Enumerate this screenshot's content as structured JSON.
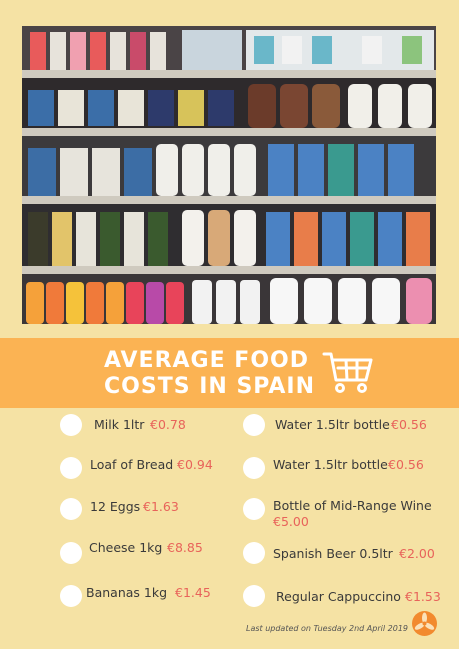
{
  "banner": {
    "title": "AVERAGE FOOD COSTS IN SPAIN",
    "icon": "shopping-cart-icon"
  },
  "items": [
    {
      "label": "Milk 1ltr",
      "price": "€0.78"
    },
    {
      "label": "Loaf of Bread",
      "price": "€0.94"
    },
    {
      "label": "12 Eggs",
      "price": "€1.63"
    },
    {
      "label": "Cheese 1kg",
      "price": "€8.85"
    },
    {
      "label": "Bananas 1kg",
      "price": "€1.45"
    },
    {
      "label": "Water 1.5ltr bottle",
      "price": "€0.56"
    },
    {
      "label": "Water 1.5ltr bottle",
      "price": "€0.56"
    },
    {
      "label": "Bottle of Mid-Range Wine",
      "price": "€5.00"
    },
    {
      "label": "Spanish Beer 0.5ltr",
      "price": "€2.00"
    },
    {
      "label": "Regular Cappuccino",
      "price": "€1.53"
    }
  ],
  "footer": {
    "updated": "Last updated on Tuesday 2nd April 2019",
    "logo_icon": "propeller-logo-icon"
  },
  "colors": {
    "background": "#f5e2a4",
    "banner": "#fbb353",
    "price": "#e8635a"
  }
}
